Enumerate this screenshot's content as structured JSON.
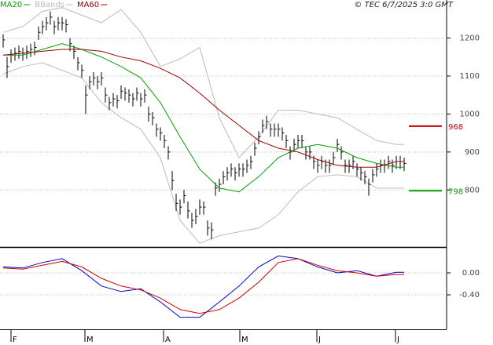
{
  "chart_data": [
    {
      "type": "ohlc",
      "stamp": "© TEC 6/7/2025 3:0 GMT",
      "bar_color": "#000000",
      "xlim": [
        -0.8,
        112.8
      ],
      "ylim": [
        650,
        1300
      ],
      "yticks": [
        1200,
        1100,
        1000,
        900,
        800
      ],
      "grid": true,
      "high": [
        1210,
        1150,
        1170,
        1175,
        1180,
        1175,
        1180,
        1185,
        1190,
        1230,
        1245,
        1255,
        1270,
        1245,
        1255,
        1255,
        1250,
        1200,
        1180,
        1150,
        1130,
        1075,
        1100,
        1110,
        1100,
        1110,
        1070,
        1045,
        1055,
        1050,
        1075,
        1070,
        1065,
        1055,
        1070,
        1055,
        1065,
        1020,
        1005,
        975,
        965,
        945,
        915,
        850,
        790,
        775,
        800,
        770,
        740,
        750,
        775,
        770,
        720,
        715,
        820,
        830,
        850,
        860,
        870,
        860,
        870,
        870,
        880,
        890,
        925,
        955,
        985,
        995,
        975,
        975,
        975,
        965,
        945,
        915,
        935,
        945,
        945,
        915,
        915,
        890,
        880,
        890,
        880,
        880,
        900,
        935,
        915,
        880,
        880,
        890,
        870,
        860,
        850,
        830,
        855,
        870,
        880,
        880,
        890,
        880,
        890,
        890,
        885
      ],
      "low": [
        1175,
        1095,
        1135,
        1140,
        1145,
        1140,
        1145,
        1150,
        1155,
        1195,
        1210,
        1220,
        1235,
        1210,
        1220,
        1220,
        1215,
        1165,
        1145,
        1115,
        1095,
        1000,
        1065,
        1075,
        1065,
        1075,
        1030,
        1010,
        1020,
        1015,
        1040,
        1035,
        1030,
        1020,
        1035,
        1020,
        1030,
        980,
        970,
        940,
        930,
        910,
        880,
        800,
        745,
        735,
        765,
        725,
        700,
        710,
        735,
        735,
        680,
        670,
        785,
        795,
        815,
        825,
        835,
        825,
        835,
        835,
        845,
        855,
        890,
        920,
        950,
        960,
        940,
        940,
        940,
        930,
        910,
        880,
        900,
        910,
        910,
        880,
        880,
        855,
        845,
        855,
        845,
        845,
        865,
        900,
        880,
        845,
        845,
        855,
        835,
        825,
        815,
        785,
        820,
        835,
        845,
        845,
        855,
        845,
        855,
        855,
        850
      ],
      "close": [
        1195,
        1125,
        1155,
        1160,
        1165,
        1160,
        1165,
        1170,
        1175,
        1215,
        1230,
        1240,
        1255,
        1230,
        1240,
        1240,
        1235,
        1185,
        1165,
        1135,
        1115,
        1050,
        1085,
        1095,
        1085,
        1095,
        1050,
        1030,
        1040,
        1035,
        1060,
        1055,
        1050,
        1040,
        1055,
        1040,
        1050,
        1000,
        990,
        960,
        950,
        930,
        900,
        825,
        765,
        755,
        785,
        745,
        720,
        730,
        755,
        755,
        700,
        695,
        805,
        815,
        835,
        845,
        855,
        845,
        855,
        855,
        865,
        875,
        910,
        940,
        970,
        980,
        960,
        960,
        960,
        950,
        930,
        900,
        920,
        930,
        930,
        900,
        900,
        875,
        865,
        875,
        865,
        865,
        885,
        920,
        900,
        865,
        865,
        875,
        855,
        845,
        835,
        815,
        840,
        855,
        865,
        865,
        875,
        865,
        875,
        875,
        870
      ],
      "series": [
        {
          "name": "MA20",
          "color": "#00a000",
          "x": [
            0,
            5,
            10,
            15,
            20,
            25,
            30,
            35,
            40,
            45,
            50,
            55,
            60,
            65,
            70,
            75,
            80,
            85,
            90,
            95,
            100,
            102
          ],
          "values": [
            1155,
            1155,
            1170,
            1185,
            1170,
            1150,
            1125,
            1095,
            1030,
            940,
            855,
            805,
            795,
            835,
            885,
            910,
            920,
            910,
            885,
            870,
            860,
            860
          ]
        },
        {
          "name": "MA60",
          "color": "#a00000",
          "x": [
            0,
            5,
            10,
            15,
            20,
            25,
            30,
            35,
            40,
            45,
            50,
            55,
            60,
            65,
            70,
            75,
            80,
            85,
            90,
            95,
            100,
            102
          ],
          "values": [
            1155,
            1160,
            1165,
            1170,
            1170,
            1165,
            1150,
            1140,
            1120,
            1095,
            1055,
            1010,
            970,
            930,
            910,
            900,
            880,
            865,
            860,
            860,
            875,
            875
          ]
        }
      ],
      "bbands": {
        "name": "BBands",
        "color": "#bbbbbb",
        "x": [
          0,
          5,
          10,
          15,
          20,
          25,
          30,
          35,
          40,
          45,
          50,
          55,
          60,
          65,
          70,
          75,
          80,
          85,
          90,
          95,
          100,
          102
        ],
        "upper": [
          1215,
          1230,
          1270,
          1280,
          1260,
          1240,
          1275,
          1215,
          1125,
          1145,
          1175,
          990,
          885,
          940,
          1010,
          1010,
          1000,
          990,
          960,
          930,
          920,
          920
        ],
        "lower": [
          1105,
          1125,
          1135,
          1115,
          1095,
          1030,
          990,
          960,
          885,
          720,
          660,
          680,
          690,
          700,
          735,
          795,
          835,
          840,
          835,
          805,
          805,
          805
        ]
      },
      "levels": [
        {
          "value": 968,
          "color": "#cc0000"
        },
        {
          "value": 798,
          "color": "#00a000"
        }
      ]
    },
    {
      "type": "macd",
      "xlim": [
        -0.8,
        112.8
      ],
      "ylim": [
        -1.03,
        0.43
      ],
      "yticks": [
        {
          "value": 0,
          "label": "0.00"
        },
        {
          "value": -0.4,
          "label": "-0.40"
        }
      ],
      "grid": true,
      "xticks": [
        {
          "value": 2,
          "label": "F"
        },
        {
          "value": 20.8,
          "label": "M"
        },
        {
          "value": 40.8,
          "label": "A"
        },
        {
          "value": 60.2,
          "label": "M"
        },
        {
          "value": 79.8,
          "label": "J"
        },
        {
          "value": 99.8,
          "label": "J"
        }
      ],
      "series": [
        {
          "color": "#0000cc",
          "x": [
            0,
            5,
            10,
            15,
            20,
            25,
            30,
            35,
            40,
            45,
            50,
            55,
            60,
            65,
            70,
            75,
            80,
            85,
            90,
            95,
            100,
            102
          ],
          "values": [
            0.11,
            0.09,
            0.19,
            0.26,
            0.04,
            -0.24,
            -0.34,
            -0.29,
            -0.53,
            -0.81,
            -0.81,
            -0.53,
            -0.24,
            0.11,
            0.31,
            0.26,
            0.11,
            0,
            0.04,
            -0.06,
            0.01,
            0.01
          ]
        },
        {
          "color": "#cc0000",
          "x": [
            0,
            5,
            10,
            15,
            20,
            25,
            30,
            35,
            40,
            45,
            50,
            55,
            60,
            65,
            70,
            75,
            80,
            85,
            90,
            95,
            100,
            102
          ],
          "values": [
            0.09,
            0.07,
            0.14,
            0.21,
            0.11,
            -0.1,
            -0.24,
            -0.31,
            -0.46,
            -0.67,
            -0.74,
            -0.67,
            -0.46,
            -0.17,
            0.19,
            0.26,
            0.14,
            0.04,
            0,
            -0.06,
            -0.03,
            -0.03
          ]
        }
      ]
    }
  ]
}
